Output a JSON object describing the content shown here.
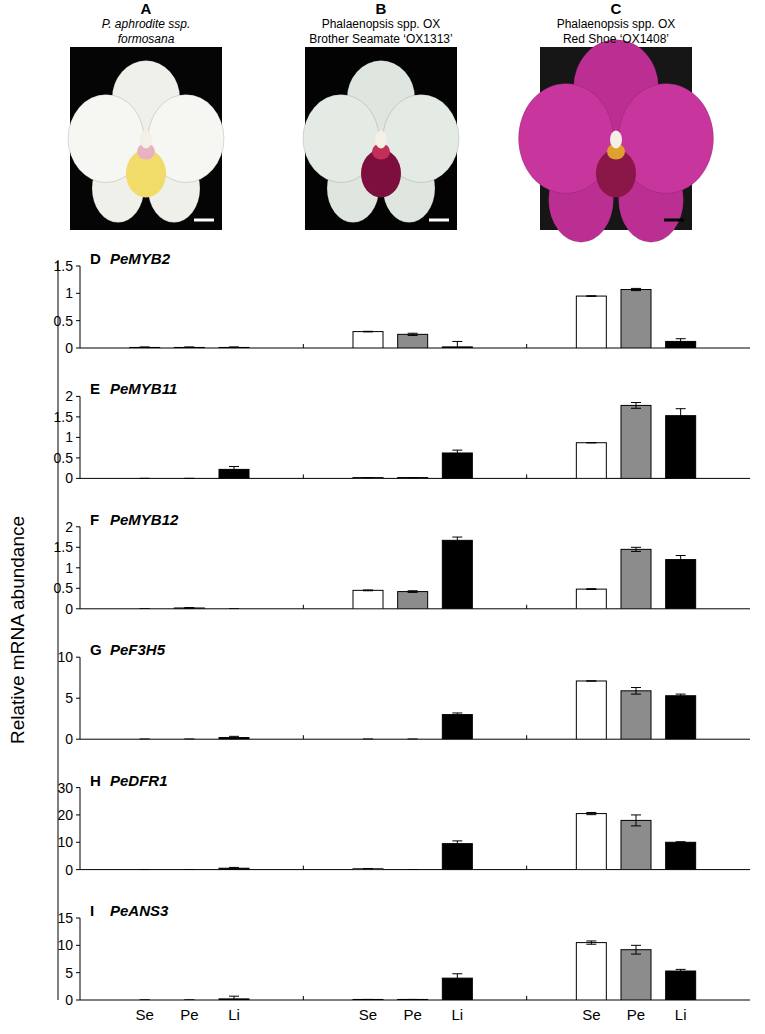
{
  "photos": [
    {
      "letter": "A",
      "lines": [
        "P. aphrodite ssp.",
        "formosana"
      ]
    },
    {
      "letter": "B",
      "lines": [
        "Phalaenopsis spp. OX",
        "Brother Seamate ‘OX1313’"
      ]
    },
    {
      "letter": "C",
      "lines": [
        "Phalaenopsis spp. OX",
        "Red Shoe ‘OX1408’"
      ]
    }
  ],
  "y_axis_label": "Relative mRNA abundance",
  "chart_data": [
    {
      "type": "bar",
      "panel": "D",
      "title": "PeMYB2",
      "categories": [
        "Se",
        "Pe",
        "Li",
        "Se",
        "Pe",
        "Li",
        "Se",
        "Pe",
        "Li"
      ],
      "values": [
        0.01,
        0.01,
        0.01,
        0.3,
        0.25,
        0.02,
        0.95,
        1.07,
        0.12
      ],
      "errors": [
        0.01,
        0.01,
        0.01,
        0.005,
        0.02,
        0.1,
        0.005,
        0.02,
        0.05
      ],
      "colors": [
        "#ffffff",
        "#8c8c8c",
        "#000000",
        "#ffffff",
        "#8c8c8c",
        "#000000",
        "#ffffff",
        "#8c8c8c",
        "#000000"
      ],
      "ylim": [
        0,
        1.5
      ],
      "yticks": [
        0,
        0.5,
        1,
        1.5
      ],
      "tick_labels": "y"
    },
    {
      "type": "bar",
      "panel": "E",
      "title": "PeMYB11",
      "categories": [
        "Se",
        "Pe",
        "Li",
        "Se",
        "Pe",
        "Li",
        "Se",
        "Pe",
        "Li"
      ],
      "values": [
        0,
        0,
        0.22,
        0.02,
        0.02,
        0.62,
        0.87,
        1.78,
        1.53
      ],
      "errors": [
        0,
        0,
        0.07,
        0,
        0,
        0.07,
        0,
        0.07,
        0.17
      ],
      "colors": [
        "#ffffff",
        "#8c8c8c",
        "#000000",
        "#ffffff",
        "#8c8c8c",
        "#000000",
        "#ffffff",
        "#8c8c8c",
        "#000000"
      ],
      "ylim": [
        0,
        2
      ],
      "yticks": [
        0,
        0.5,
        1,
        1.5,
        2
      ],
      "tick_labels": "y"
    },
    {
      "type": "bar",
      "panel": "F",
      "title": "PeMYB12",
      "categories": [
        "Se",
        "Pe",
        "Li",
        "Se",
        "Pe",
        "Li",
        "Se",
        "Pe",
        "Li"
      ],
      "values": [
        0,
        0.02,
        0,
        0.45,
        0.42,
        1.67,
        0.48,
        1.45,
        1.2
      ],
      "errors": [
        0,
        0.01,
        0,
        0.01,
        0.02,
        0.08,
        0.01,
        0.05,
        0.1
      ],
      "colors": [
        "#ffffff",
        "#8c8c8c",
        "#000000",
        "#ffffff",
        "#8c8c8c",
        "#000000",
        "#ffffff",
        "#8c8c8c",
        "#000000"
      ],
      "ylim": [
        0,
        2
      ],
      "yticks": [
        0,
        0.5,
        1,
        1.5,
        2
      ],
      "tick_labels": "y"
    },
    {
      "type": "bar",
      "panel": "G",
      "title": "PeF3H5",
      "categories": [
        "Se",
        "Pe",
        "Li",
        "Se",
        "Pe",
        "Li",
        "Se",
        "Pe",
        "Li"
      ],
      "values": [
        0,
        0,
        0.2,
        0,
        0,
        3,
        7.1,
        5.9,
        5.3
      ],
      "errors": [
        0,
        0,
        0.15,
        0,
        0,
        0.2,
        0,
        0.4,
        0.2
      ],
      "colors": [
        "#ffffff",
        "#8c8c8c",
        "#000000",
        "#ffffff",
        "#8c8c8c",
        "#000000",
        "#ffffff",
        "#8c8c8c",
        "#000000"
      ],
      "ylim": [
        0,
        10
      ],
      "yticks": [
        0,
        5,
        10
      ],
      "tick_labels": "y"
    },
    {
      "type": "bar",
      "panel": "H",
      "title": "PeDFR1",
      "categories": [
        "Se",
        "Pe",
        "Li",
        "Se",
        "Pe",
        "Li",
        "Se",
        "Pe",
        "Li"
      ],
      "values": [
        0,
        0,
        0.5,
        0.3,
        0,
        9.5,
        20.5,
        18,
        10
      ],
      "errors": [
        0,
        0,
        0.3,
        0,
        0,
        1,
        0.4,
        2,
        0.2
      ],
      "colors": [
        "#ffffff",
        "#8c8c8c",
        "#000000",
        "#ffffff",
        "#8c8c8c",
        "#000000",
        "#ffffff",
        "#8c8c8c",
        "#000000"
      ],
      "ylim": [
        0,
        30
      ],
      "yticks": [
        0,
        10,
        20,
        30
      ],
      "tick_labels": "y"
    },
    {
      "type": "bar",
      "panel": "I",
      "title": "PeANS3",
      "categories": [
        "Se",
        "Pe",
        "Li",
        "Se",
        "Pe",
        "Li",
        "Se",
        "Pe",
        "Li"
      ],
      "values": [
        0,
        0,
        0.2,
        0.1,
        0.1,
        4,
        10.5,
        9.2,
        5.3
      ],
      "errors": [
        0,
        0,
        0.5,
        0,
        0,
        0.8,
        0.3,
        0.8,
        0.3
      ],
      "colors": [
        "#ffffff",
        "#8c8c8c",
        "#000000",
        "#ffffff",
        "#8c8c8c",
        "#000000",
        "#ffffff",
        "#8c8c8c",
        "#000000"
      ],
      "ylim": [
        0,
        15
      ],
      "yticks": [
        0,
        5,
        10,
        15
      ],
      "tick_labels": true
    }
  ]
}
